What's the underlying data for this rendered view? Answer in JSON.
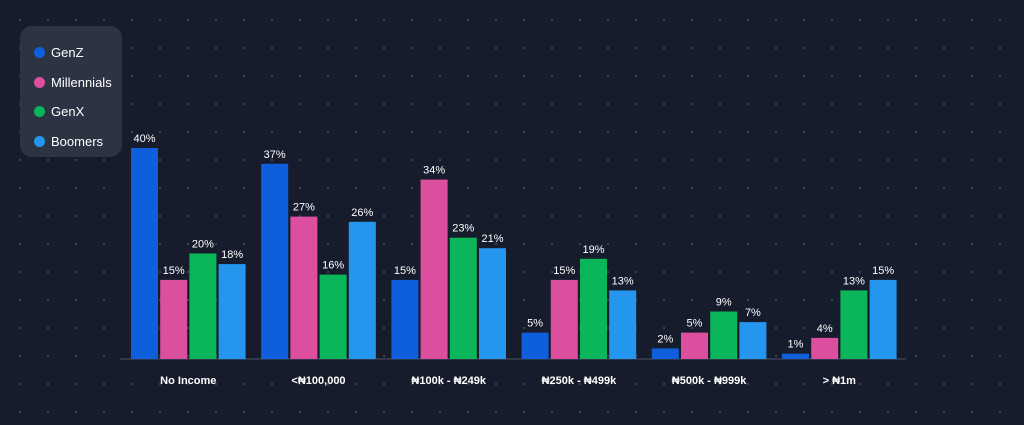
{
  "chart_data": {
    "type": "bar",
    "title": "",
    "xlabel": "",
    "ylabel": "",
    "ylim": [
      0,
      40
    ],
    "legend_position": "top-left",
    "grid": false,
    "categories": [
      "No Income",
      "<₦100,000",
      "₦100k - ₦249k",
      "₦250k - ₦499k",
      "₦500k - ₦999k",
      "> ₦1m"
    ],
    "series": [
      {
        "name": "GenZ",
        "color": "#0f5fdc",
        "values": [
          40,
          37,
          15,
          5,
          2,
          1
        ],
        "labels": [
          "40%",
          "37%",
          "15%",
          "5%",
          "2%",
          "1%"
        ]
      },
      {
        "name": "Millennials",
        "color": "#dc4f9e",
        "values": [
          15,
          27,
          34,
          15,
          5,
          4
        ],
        "labels": [
          "15%",
          "27%",
          "34%",
          "15%",
          "5%",
          "4%"
        ]
      },
      {
        "name": "GenX",
        "color": "#0bb559",
        "values": [
          20,
          16,
          23,
          19,
          9,
          13
        ],
        "labels": [
          "20%",
          "16%",
          "23%",
          "19%",
          "9%",
          "13%"
        ]
      },
      {
        "name": "Boomers",
        "color": "#2596ee",
        "values": [
          18,
          26,
          21,
          13,
          7,
          15
        ],
        "labels": [
          "18%",
          "26%",
          "21%",
          "13%",
          "7%",
          "15%"
        ]
      }
    ]
  }
}
